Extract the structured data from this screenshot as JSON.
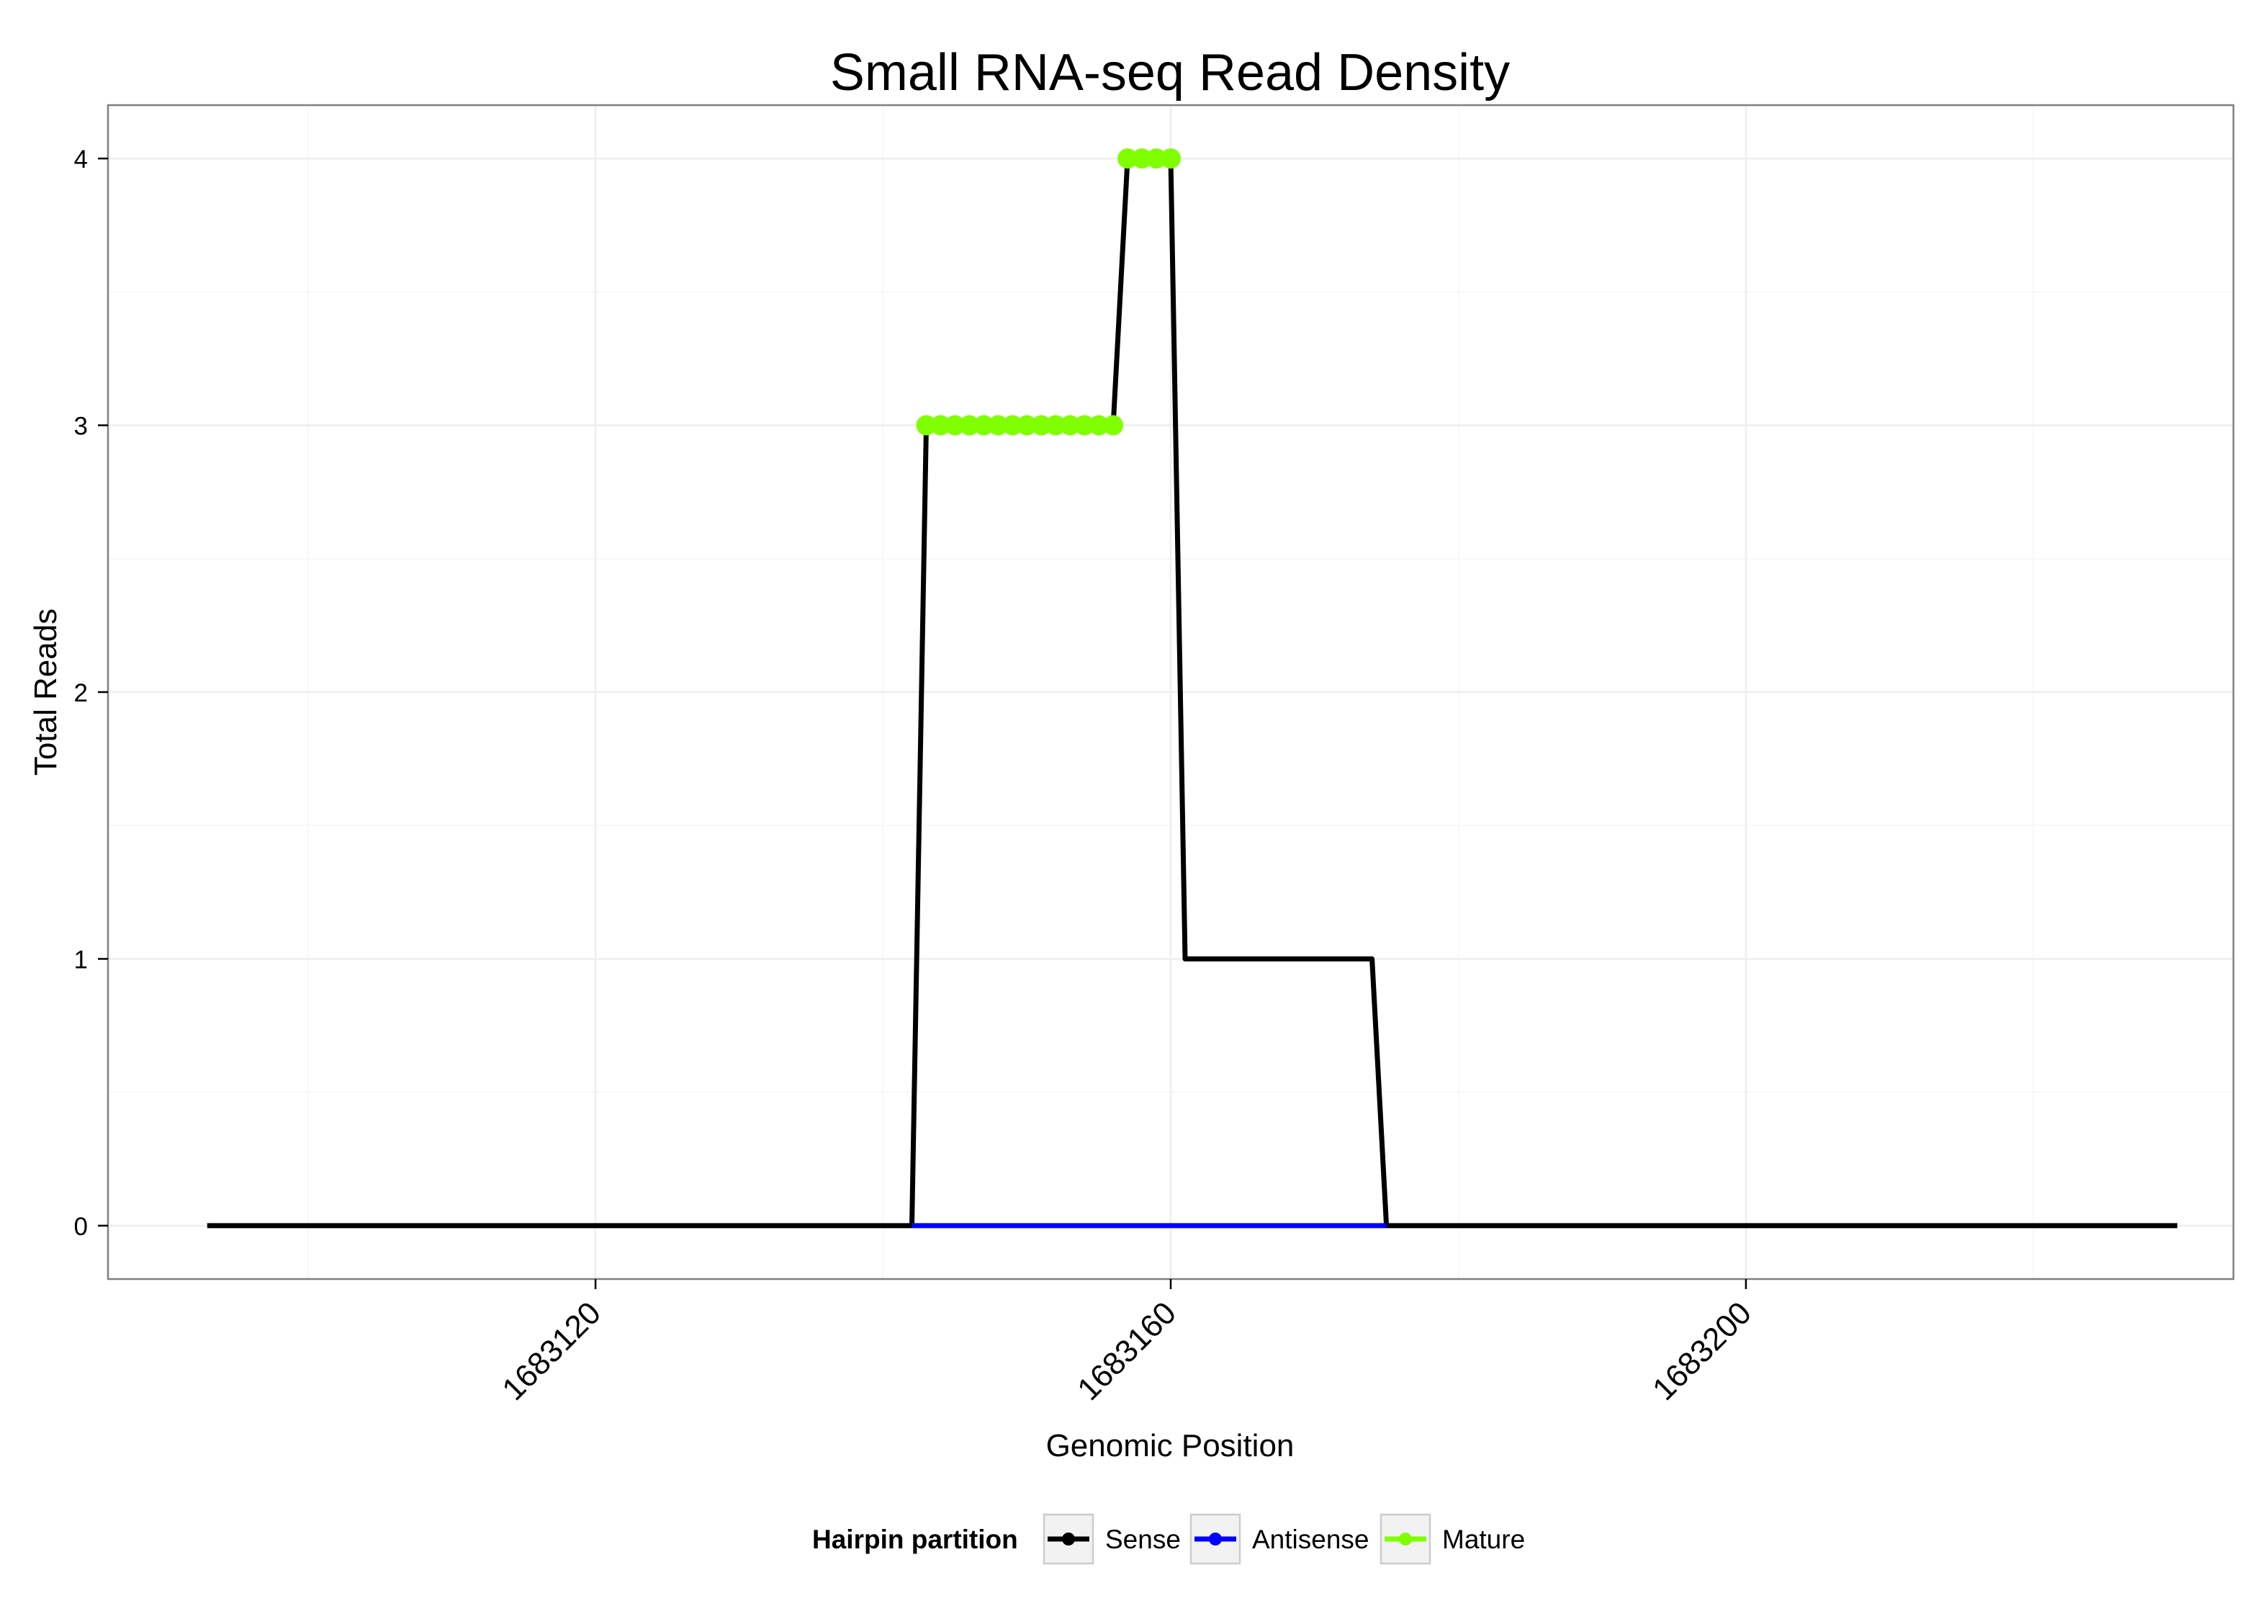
{
  "chart_data": {
    "type": "line",
    "title": "Small RNA-seq Read Density",
    "xlabel": "Genomic Position",
    "ylabel": "Total Reads",
    "xlim": [
      1683086.1,
      1683233.9
    ],
    "ylim": [
      -0.2,
      4.2
    ],
    "x_ticks": [
      1683120,
      1683160,
      1683200
    ],
    "x_tick_labels": [
      "1683120",
      "1683160",
      "1683200"
    ],
    "y_ticks": [
      0,
      1,
      2,
      3,
      4
    ],
    "y_tick_labels": [
      "0",
      "1",
      "2",
      "3",
      "4"
    ],
    "grid": true,
    "legend": {
      "title": "Hairpin partition",
      "position": "bottom",
      "entries": [
        "Sense",
        "Antisense",
        "Mature"
      ]
    },
    "series": [
      {
        "name": "Sense",
        "color": "#000000",
        "points": [
          [
            1683093,
            0
          ],
          [
            1683142,
            0
          ],
          [
            1683143,
            3
          ],
          [
            1683156,
            3
          ],
          [
            1683157,
            4
          ],
          [
            1683160,
            4
          ],
          [
            1683161,
            1
          ],
          [
            1683174,
            1
          ],
          [
            1683175,
            0
          ],
          [
            1683230,
            0
          ]
        ]
      },
      {
        "name": "Antisense",
        "color": "#0000ff",
        "points": [
          [
            1683142,
            0
          ],
          [
            1683175,
            0
          ]
        ]
      },
      {
        "name": "Mature",
        "color": "#7fff00",
        "points": [
          [
            1683143,
            3
          ],
          [
            1683144,
            3
          ],
          [
            1683145,
            3
          ],
          [
            1683146,
            3
          ],
          [
            1683147,
            3
          ],
          [
            1683148,
            3
          ],
          [
            1683149,
            3
          ],
          [
            1683150,
            3
          ],
          [
            1683151,
            3
          ],
          [
            1683152,
            3
          ],
          [
            1683153,
            3
          ],
          [
            1683154,
            3
          ],
          [
            1683155,
            3
          ],
          [
            1683156,
            3
          ],
          [
            1683157,
            4
          ],
          [
            1683158,
            4
          ],
          [
            1683159,
            4
          ],
          [
            1683160,
            4
          ]
        ]
      }
    ]
  }
}
